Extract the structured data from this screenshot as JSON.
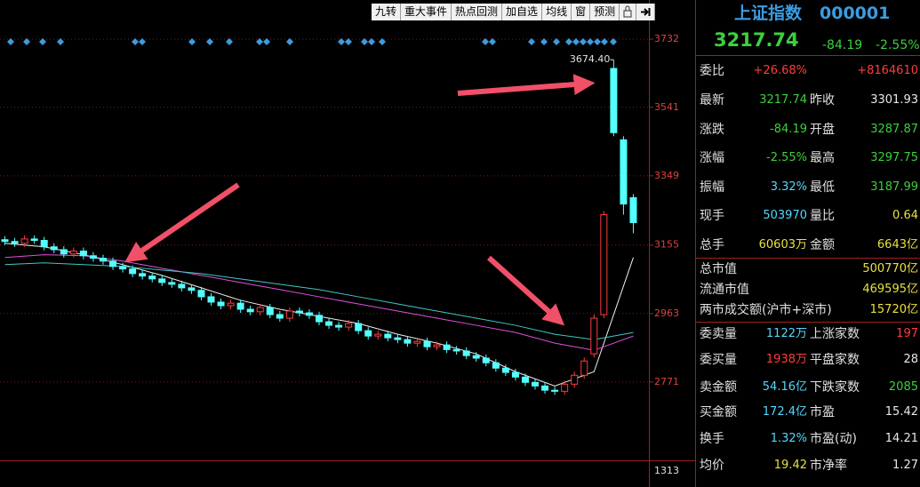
{
  "toolbar": [
    "九转",
    "重大事件",
    "热点回测",
    "加自选",
    "均线",
    "窗",
    "预测"
  ],
  "chart_data": {
    "type": "candlestick",
    "x": [
      0,
      1,
      2,
      3,
      4,
      5,
      6,
      7,
      8,
      9,
      10,
      11,
      12,
      13,
      14,
      15,
      16,
      17,
      18,
      19,
      20,
      21,
      22,
      23,
      24,
      25,
      26,
      27,
      28,
      29,
      30,
      31,
      32,
      33,
      34,
      35,
      36,
      37,
      38,
      39,
      40,
      41,
      42,
      43,
      44,
      45,
      46,
      47,
      48,
      49,
      50,
      51,
      52,
      53,
      54,
      55,
      56,
      57,
      58,
      59,
      60,
      61,
      62,
      63,
      64
    ],
    "opens": [
      3170,
      3165,
      3160,
      3172,
      3168,
      3150,
      3142,
      3130,
      3138,
      3125,
      3118,
      3110,
      3095,
      3088,
      3075,
      3068,
      3060,
      3050,
      3045,
      3035,
      3028,
      3010,
      2995,
      2985,
      2992,
      2975,
      2968,
      2980,
      2960,
      2950,
      2970,
      2965,
      2958,
      2940,
      2930,
      2925,
      2935,
      2915,
      2900,
      2905,
      2895,
      2890,
      2880,
      2885,
      2870,
      2875,
      2862,
      2858,
      2845,
      2838,
      2825,
      2810,
      2798,
      2785,
      2770,
      2760,
      2748,
      2745,
      2765,
      2790,
      2850,
      2960,
      3650,
      3450,
      3287.87
    ],
    "highs": [
      3180,
      3175,
      3182,
      3182,
      3178,
      3160,
      3152,
      3148,
      3148,
      3135,
      3128,
      3120,
      3105,
      3098,
      3085,
      3078,
      3070,
      3060,
      3055,
      3045,
      3038,
      3020,
      3005,
      3002,
      3002,
      2985,
      2990,
      2990,
      2970,
      2980,
      2980,
      2975,
      2968,
      2950,
      2940,
      2945,
      2945,
      2925,
      2915,
      2915,
      2905,
      2900,
      2895,
      2895,
      2885,
      2885,
      2872,
      2868,
      2855,
      2848,
      2835,
      2820,
      2808,
      2795,
      2780,
      2770,
      2758,
      2775,
      2800,
      2840,
      2960,
      3250,
      3674.4,
      3460,
      3297.75
    ],
    "lows": [
      3155,
      3150,
      3150,
      3158,
      3140,
      3132,
      3120,
      3120,
      3115,
      3108,
      3100,
      3085,
      3078,
      3065,
      3058,
      3050,
      3040,
      3035,
      3025,
      3018,
      3000,
      2985,
      2975,
      2975,
      2965,
      2958,
      2958,
      2950,
      2940,
      2940,
      2955,
      2948,
      2930,
      2920,
      2915,
      2915,
      2905,
      2890,
      2890,
      2885,
      2880,
      2870,
      2870,
      2860,
      2860,
      2852,
      2848,
      2835,
      2828,
      2815,
      2800,
      2788,
      2775,
      2760,
      2750,
      2738,
      2735,
      2735,
      2755,
      2780,
      2840,
      2950,
      3460,
      3240,
      3187.99
    ],
    "closes": [
      3165,
      3160,
      3172,
      3168,
      3150,
      3142,
      3130,
      3138,
      3125,
      3118,
      3110,
      3095,
      3088,
      3075,
      3068,
      3060,
      3050,
      3045,
      3035,
      3028,
      3010,
      2995,
      2985,
      2992,
      2975,
      2968,
      2980,
      2960,
      2950,
      2970,
      2965,
      2958,
      2940,
      2930,
      2925,
      2935,
      2915,
      2900,
      2905,
      2895,
      2890,
      2880,
      2885,
      2870,
      2875,
      2862,
      2858,
      2845,
      2838,
      2825,
      2810,
      2798,
      2785,
      2770,
      2760,
      2748,
      2745,
      2765,
      2790,
      2830,
      2950,
      3240,
      3470,
      3270,
      3217.74
    ],
    "up_color": "#ff3c3c",
    "down_color": "#54ffff",
    "high_label": "3674.40",
    "lines": [
      {
        "color": "#f0f0f0",
        "x": [
          0,
          4,
          8,
          12,
          16,
          20,
          24,
          28,
          32,
          36,
          40,
          44,
          48,
          52,
          56,
          60,
          64
        ],
        "values": [
          3160,
          3150,
          3128,
          3100,
          3070,
          3035,
          3000,
          2975,
          2955,
          2935,
          2905,
          2880,
          2850,
          2800,
          2760,
          2800,
          3120
        ]
      },
      {
        "color": "#e050e0",
        "x": [
          0,
          4,
          8,
          12,
          16,
          20,
          24,
          28,
          32,
          36,
          40,
          44,
          48,
          52,
          56,
          60,
          64
        ],
        "values": [
          3120,
          3128,
          3125,
          3110,
          3090,
          3070,
          3050,
          3030,
          3010,
          2990,
          2970,
          2950,
          2930,
          2910,
          2880,
          2860,
          2900
        ]
      },
      {
        "color": "#40c8c8",
        "x": [
          0,
          4,
          8,
          12,
          16,
          20,
          24,
          28,
          32,
          36,
          40,
          44,
          48,
          52,
          56,
          60,
          64
        ],
        "values": [
          3100,
          3105,
          3100,
          3095,
          3085,
          3075,
          3060,
          3045,
          3030,
          3010,
          2990,
          2970,
          2950,
          2930,
          2905,
          2890,
          2910
        ]
      }
    ],
    "xlim": [
      -0.5,
      64.5
    ],
    "ylim": [
      2559,
      3787
    ],
    "yticks": [
      3732,
      3541,
      3349,
      3155,
      2963,
      2771
    ],
    "volume_yticks": [
      1313
    ],
    "grid": true
  },
  "panel": {
    "name": "上证指数",
    "code": "000001",
    "price": "3217.74",
    "change": "-84.19",
    "change_pct": "-2.55%",
    "rows": [
      [
        {
          "label": "委比",
          "value": "+26.68%",
          "color": "#ff3c3c"
        },
        {
          "label": "",
          "value": "+8164610",
          "color": "#ff3c3c"
        }
      ],
      [
        {
          "label": "最新",
          "value": "3217.74",
          "color": "#3cd13c"
        },
        {
          "label": "昨收",
          "value": "3301.93",
          "color": "#e8e8e8"
        }
      ],
      [
        {
          "label": "涨跌",
          "value": "-84.19",
          "color": "#3cd13c"
        },
        {
          "label": "开盘",
          "value": "3287.87",
          "color": "#3cd13c"
        }
      ],
      [
        {
          "label": "涨幅",
          "value": "-2.55%",
          "color": "#3cd13c"
        },
        {
          "label": "最高",
          "value": "3297.75",
          "color": "#3cd13c"
        }
      ],
      [
        {
          "label": "振幅",
          "value": "3.32%",
          "color": "#54d8ff"
        },
        {
          "label": "最低",
          "value": "3187.99",
          "color": "#3cd13c"
        }
      ],
      [
        {
          "label": "现手",
          "value": "503970",
          "color": "#54d8ff"
        },
        {
          "label": "量比",
          "value": "0.64",
          "color": "#e8e040"
        }
      ],
      [
        {
          "label": "总手",
          "value": "60603万",
          "color": "#e8e040"
        },
        {
          "label": "金额",
          "value": "6643亿",
          "color": "#e8e040"
        }
      ],
      [
        {
          "label": "总市值",
          "value": "500770亿",
          "color": "#e8e040"
        }
      ],
      [
        {
          "label": "流通市值",
          "value": "469595亿",
          "color": "#e8e040"
        }
      ],
      [
        {
          "label": "两市成交额(沪市+深市)",
          "value": "15720亿",
          "color": "#e8e040"
        }
      ],
      [
        {
          "label": "委卖量",
          "value": "1122万",
          "color": "#54d8ff"
        },
        {
          "label": "上涨家数",
          "value": "197",
          "color": "#ff3c3c"
        }
      ],
      [
        {
          "label": "委买量",
          "value": "1938万",
          "color": "#ff3c3c"
        },
        {
          "label": "平盘家数",
          "value": "28",
          "color": "#e8e8e8"
        }
      ],
      [
        {
          "label": "卖金额",
          "value": "54.16亿",
          "color": "#54d8ff"
        },
        {
          "label": "下跌家数",
          "value": "2085",
          "color": "#3cd13c"
        }
      ],
      [
        {
          "label": "买金额",
          "value": "172.4亿",
          "color": "#54d8ff"
        },
        {
          "label": "市盈",
          "value": "15.42",
          "color": "#e8e8e8"
        }
      ],
      [
        {
          "label": "换手",
          "value": "1.32%",
          "color": "#54d8ff"
        },
        {
          "label": "市盈(动)",
          "value": "14.21",
          "color": "#e8e8e8"
        }
      ],
      [
        {
          "label": "均价",
          "value": "19.42",
          "color": "#e8e040"
        },
        {
          "label": "市净率",
          "value": "1.27",
          "color": "#e8e8e8"
        }
      ]
    ]
  }
}
